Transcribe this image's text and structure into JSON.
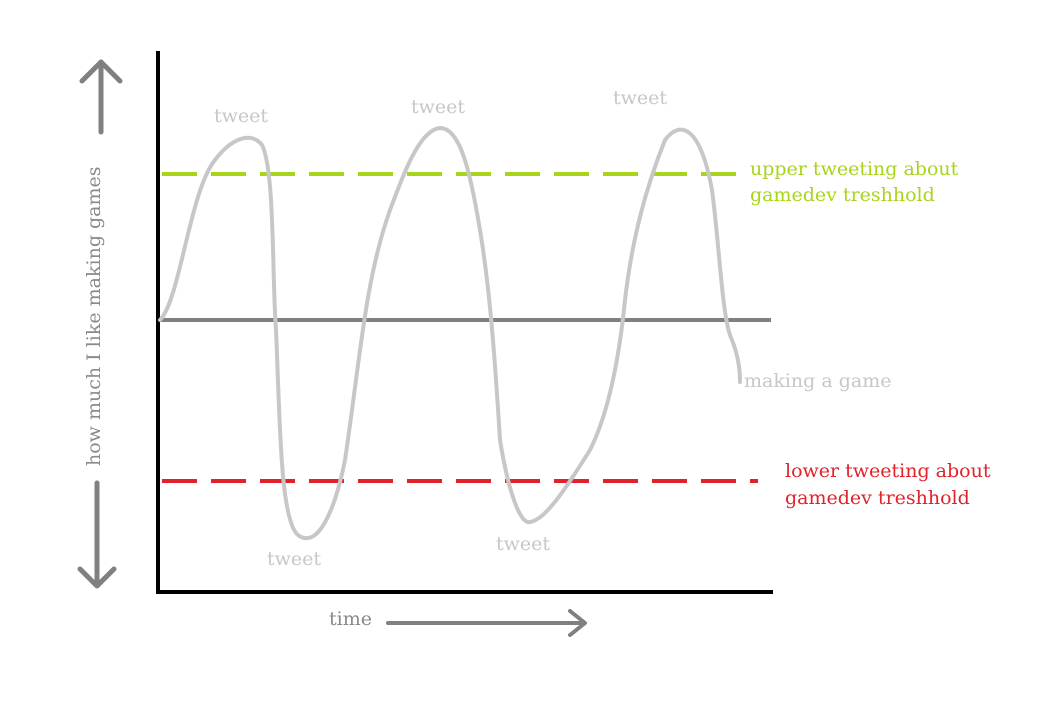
{
  "axes": {
    "ylabel": "how much I like making games",
    "xlabel": "time"
  },
  "labels": {
    "tweet_peak_1": "tweet",
    "tweet_peak_2": "tweet",
    "tweet_peak_3": "tweet",
    "tweet_trough_1": "tweet",
    "tweet_trough_2": "tweet",
    "making_a_game": "making a game",
    "upper_line1": "upper tweeting about",
    "upper_line2": "gamedev treshhold",
    "lower_line1": "lower tweeting about",
    "lower_line2": "gamedev treshhold"
  },
  "colors": {
    "axis": "#000000",
    "arrows": "#808080",
    "baseline": "#808080",
    "curve": "#c7c7c7",
    "upper_threshold": "#a8d41c",
    "lower_threshold": "#e0222a"
  }
}
